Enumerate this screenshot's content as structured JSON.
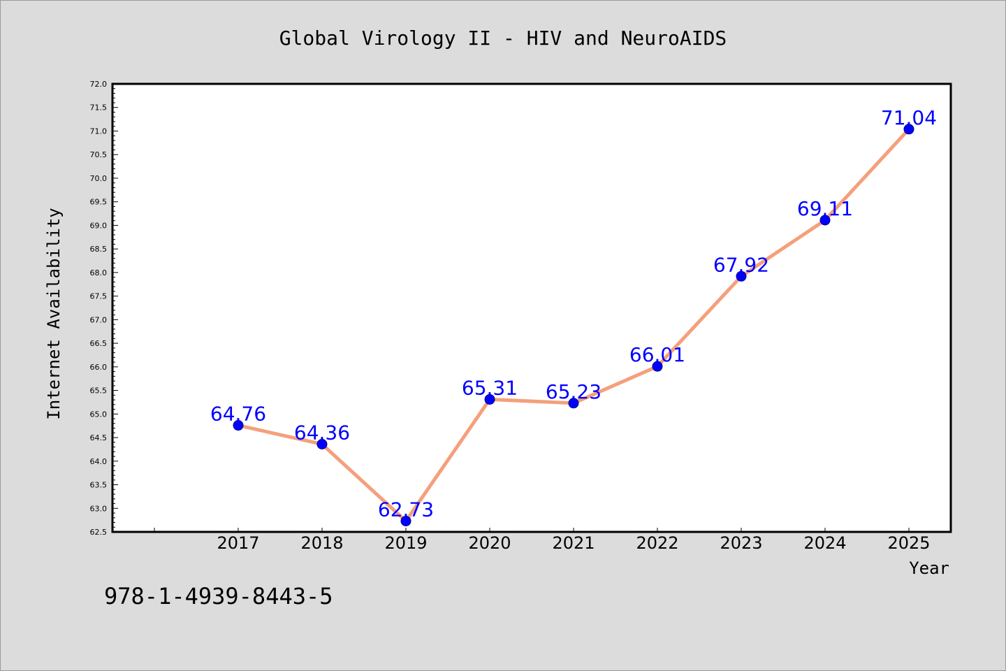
{
  "chart_data": {
    "type": "line",
    "title": "Global Virology II - HIV and NeuroAIDS",
    "xlabel": "Year",
    "ylabel": "Internet Availability",
    "categories": [
      "2017",
      "2018",
      "2019",
      "2020",
      "2021",
      "2022",
      "2023",
      "2024",
      "2025"
    ],
    "series": [
      {
        "values": [
          64.76,
          64.36,
          62.73,
          65.31,
          65.23,
          66.01,
          67.92,
          69.11,
          71.04
        ],
        "line_color": "#f4a07c",
        "marker_color": "#0000ff",
        "label_color": "#0000ff"
      }
    ],
    "ylim": [
      62.5,
      72.0
    ],
    "yticks": [
      "62.5",
      "63.0",
      "63.5",
      "64.0",
      "64.5",
      "65.0",
      "65.5",
      "66.0",
      "66.5",
      "67.0",
      "67.5",
      "68.0",
      "68.5",
      "69.0",
      "69.5",
      "70.0",
      "70.5",
      "71.0",
      "71.5",
      "72.0"
    ],
    "grid": false,
    "legend": "none"
  },
  "footer_text": "978-1-4939-8443-5"
}
